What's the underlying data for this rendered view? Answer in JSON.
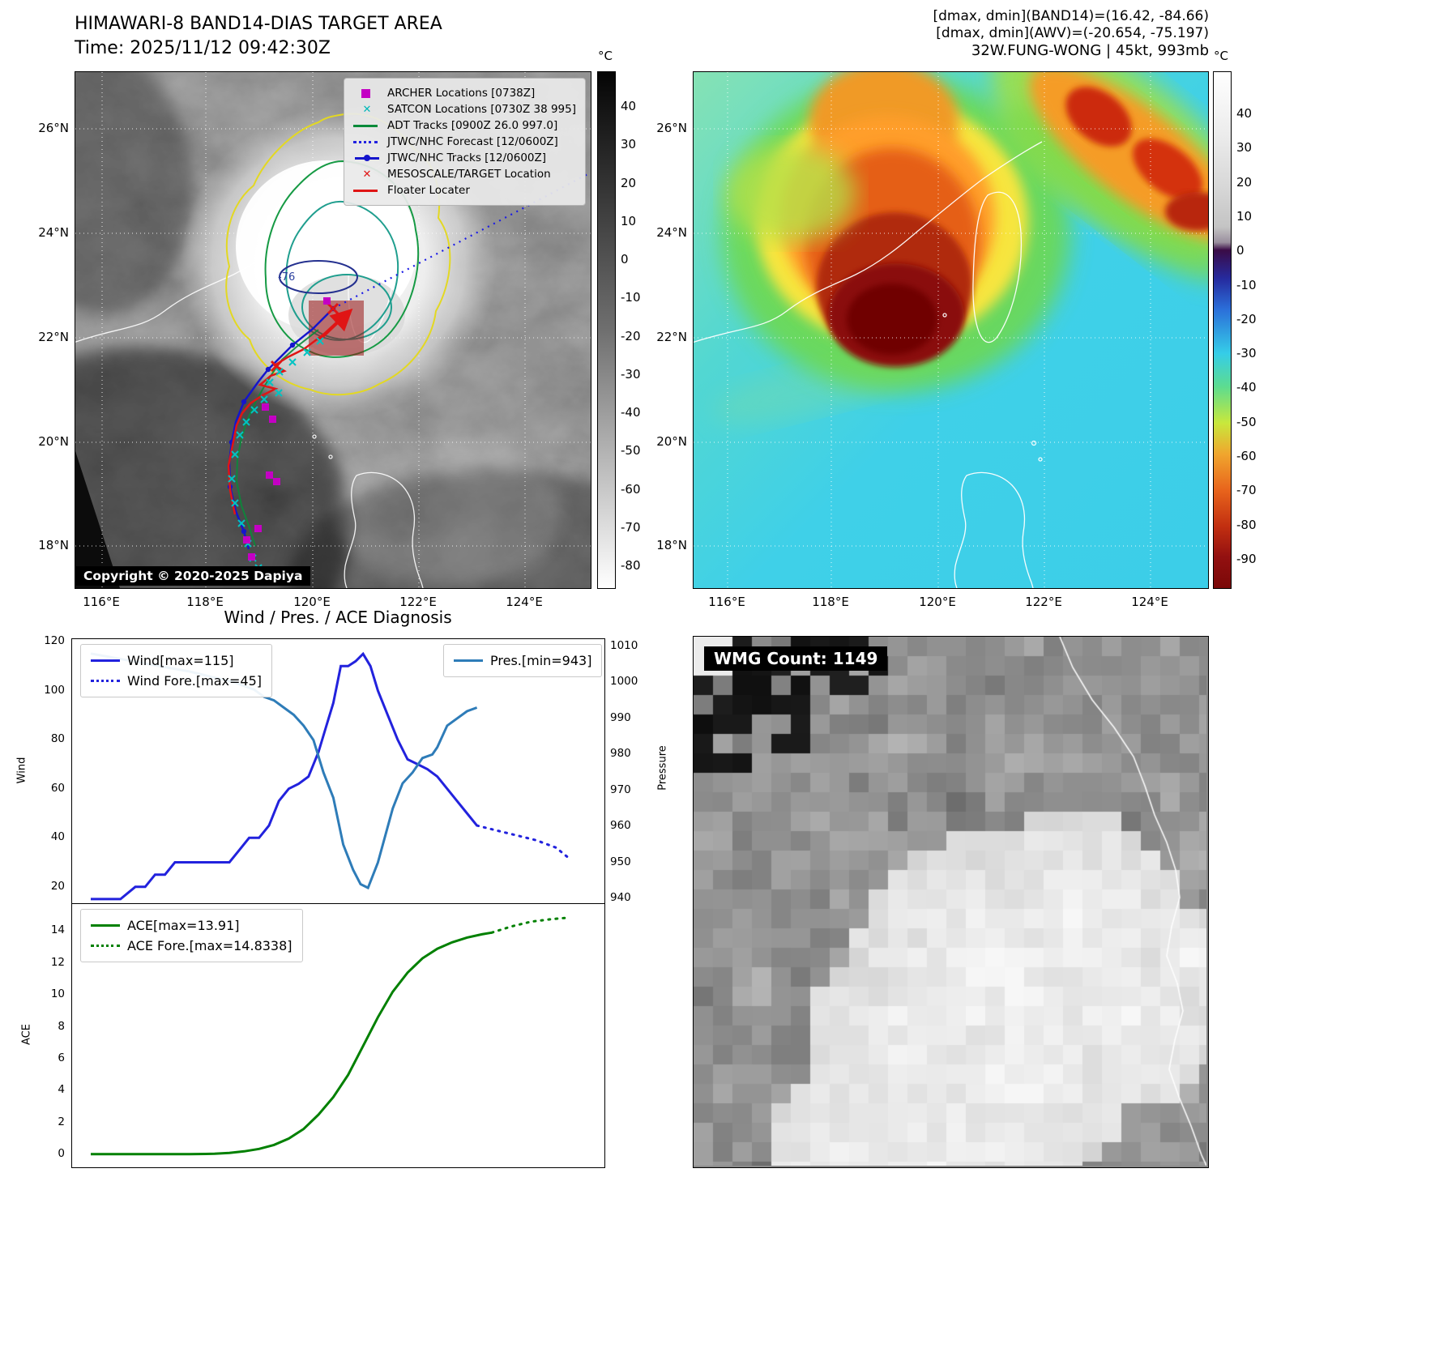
{
  "panel_band14": {
    "title": "HIMAWARI-8 BAND14-DIAS TARGET AREA",
    "time_label": "Time: 2025/11/12 09:42:30Z",
    "copyright": "Copyright © 2020-2025 Dapiya",
    "contour_label": "-76",
    "colorbar": {
      "unit": "°C",
      "ticks": [
        40,
        30,
        20,
        10,
        0,
        -10,
        -20,
        -30,
        -40,
        -50,
        -60,
        -70,
        -80
      ]
    },
    "x_ticks": [
      "116°E",
      "118°E",
      "120°E",
      "122°E",
      "124°E"
    ],
    "y_ticks": [
      "26°N",
      "24°N",
      "22°N",
      "20°N",
      "18°N"
    ],
    "legend": [
      {
        "label": "ARCHER Locations [0738Z]",
        "marker": "magenta-square"
      },
      {
        "label": "SATCON Locations [0730Z 38 995]",
        "marker": "cyan-x"
      },
      {
        "label": "ADT Tracks [0900Z 26.0 997.0]",
        "marker": "green-line"
      },
      {
        "label": "JTWC/NHC Forecast [12/0600Z]",
        "marker": "blue-dotted"
      },
      {
        "label": "JTWC/NHC Tracks [12/0600Z]",
        "marker": "blue-line-dot"
      },
      {
        "label": "MESOSCALE/TARGET Location",
        "marker": "red-x"
      },
      {
        "label": "Floater Locater",
        "marker": "red-line"
      }
    ]
  },
  "panel_awv": {
    "header_lines": [
      "[dmax, dmin](BAND14)=(16.42, -84.66)",
      "[dmax, dmin](AWV)=(-20.654, -75.197)",
      "32W.FUNG-WONG | 45kt, 993mb"
    ],
    "colorbar": {
      "unit": "°C",
      "ticks": [
        40,
        30,
        20,
        10,
        0,
        -10,
        -20,
        -30,
        -40,
        -50,
        -60,
        -70,
        -80,
        -90
      ]
    },
    "x_ticks": [
      "116°E",
      "118°E",
      "120°E",
      "122°E",
      "124°E"
    ],
    "y_ticks": [
      "26°N",
      "24°N",
      "22°N",
      "20°N",
      "18°N"
    ]
  },
  "wmg": {
    "label": "WMG Count: 1149"
  },
  "chart_data": [
    {
      "type": "line",
      "title": "Wind / Pres. / ACE Diagnosis",
      "ylabel_left": "Wind",
      "ylabel_right": "Pressure",
      "y_ticks_left": [
        20,
        40,
        60,
        80,
        100,
        120
      ],
      "y_ticks_right": [
        940,
        950,
        960,
        970,
        980,
        990,
        1000,
        1010
      ],
      "ylim_left": [
        13,
        121
      ],
      "ylim_right": [
        938.5,
        1012
      ],
      "grid": false,
      "legend_position": "upper-left / upper-right",
      "series": [
        {
          "name": "Wind[max=115]",
          "axis": "left",
          "style": "solid",
          "color": "#2222dd",
          "x": [
            0,
            0.03,
            0.06,
            0.09,
            0.11,
            0.13,
            0.15,
            0.17,
            0.19,
            0.22,
            0.25,
            0.28,
            0.3,
            0.32,
            0.34,
            0.36,
            0.38,
            0.4,
            0.42,
            0.44,
            0.46,
            0.475,
            0.49,
            0.505,
            0.52,
            0.535,
            0.55,
            0.565,
            0.58,
            0.6,
            0.62,
            0.64,
            0.66,
            0.68,
            0.7,
            0.72,
            0.74,
            0.76,
            0.78
          ],
          "y": [
            15,
            15,
            15,
            20,
            20,
            25,
            25,
            30,
            30,
            30,
            30,
            30,
            35,
            40,
            40,
            45,
            55,
            60,
            62,
            65,
            75,
            85,
            95,
            110,
            110,
            112,
            115,
            110,
            100,
            90,
            80,
            72,
            70,
            68,
            65,
            60,
            55,
            50,
            45
          ]
        },
        {
          "name": "Wind Fore.[max=45]",
          "axis": "left",
          "style": "dotted",
          "color": "#2222dd",
          "x": [
            0.78,
            0.82,
            0.86,
            0.9,
            0.94,
            0.97
          ],
          "y": [
            45,
            43,
            41,
            39,
            36,
            31
          ]
        },
        {
          "name": "Pres.[min=943]",
          "axis": "right",
          "style": "solid",
          "color": "#2e7cb8",
          "x": [
            0,
            0.04,
            0.08,
            0.12,
            0.16,
            0.2,
            0.23,
            0.26,
            0.29,
            0.31,
            0.33,
            0.35,
            0.37,
            0.39,
            0.41,
            0.43,
            0.45,
            0.47,
            0.49,
            0.51,
            0.53,
            0.545,
            0.56,
            0.58,
            0.61,
            0.63,
            0.65,
            0.67,
            0.69,
            0.7,
            0.72,
            0.74,
            0.76,
            0.78
          ],
          "y": [
            1008,
            1007,
            1006,
            1005,
            1004,
            1003,
            1002,
            1001,
            1000,
            999,
            998,
            996,
            995,
            993,
            991,
            988,
            984,
            975,
            968,
            955,
            948,
            944,
            943,
            950,
            965,
            972,
            975,
            979,
            980,
            982,
            988,
            990,
            992,
            993
          ]
        }
      ]
    },
    {
      "type": "line",
      "ylabel_left": "ACE",
      "y_ticks_left": [
        0,
        2,
        4,
        6,
        8,
        10,
        12,
        14
      ],
      "ylim_left": [
        -0.8,
        15.7
      ],
      "grid": false,
      "legend_position": "upper-left",
      "series": [
        {
          "name": "ACE[max=13.91]",
          "axis": "left",
          "style": "solid",
          "color": "#008000",
          "x": [
            0,
            0.05,
            0.1,
            0.15,
            0.2,
            0.25,
            0.28,
            0.31,
            0.34,
            0.37,
            0.4,
            0.43,
            0.46,
            0.49,
            0.52,
            0.55,
            0.58,
            0.61,
            0.64,
            0.67,
            0.7,
            0.73,
            0.76,
            0.79,
            0.81
          ],
          "y": [
            0.02,
            0.02,
            0.02,
            0.02,
            0.02,
            0.05,
            0.1,
            0.2,
            0.35,
            0.6,
            1.0,
            1.6,
            2.5,
            3.6,
            5.0,
            6.8,
            8.6,
            10.2,
            11.4,
            12.3,
            12.9,
            13.3,
            13.6,
            13.8,
            13.91
          ]
        },
        {
          "name": "ACE Fore.[max=14.8338]",
          "axis": "left",
          "style": "dotted",
          "color": "#008000",
          "x": [
            0.81,
            0.85,
            0.89,
            0.93,
            0.96
          ],
          "y": [
            13.91,
            14.3,
            14.6,
            14.75,
            14.8338
          ]
        }
      ]
    }
  ]
}
